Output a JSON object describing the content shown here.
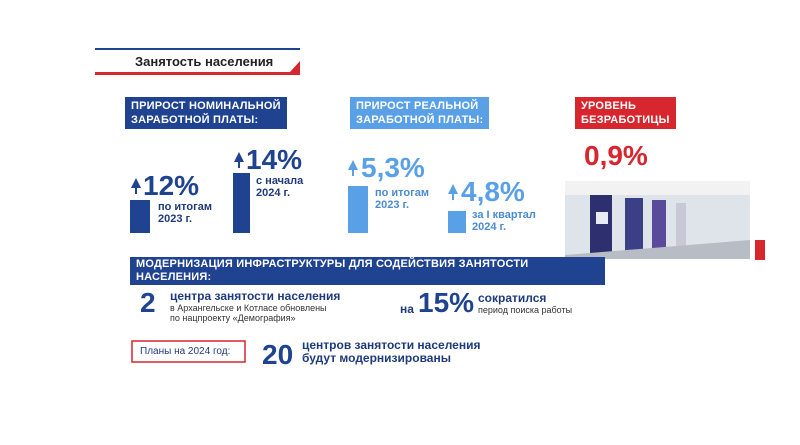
{
  "header": {
    "title": "Занятость населения"
  },
  "nominal": {
    "label": [
      "ПРИРОСТ НОМИНАЛЬНОЙ",
      "ЗАРАБОТНОЙ ПЛАТЫ:"
    ],
    "items": [
      {
        "value": "12%",
        "caption": [
          "по итогам",
          "2023 г."
        ]
      },
      {
        "value": "14%",
        "caption": [
          "с начала",
          "2024 г."
        ]
      }
    ]
  },
  "real": {
    "label": [
      "ПРИРОСТ РЕАЛЬНОЙ",
      "ЗАРАБОТНОЙ ПЛАТЫ:"
    ],
    "items": [
      {
        "value": "5,3%",
        "caption": [
          "по итогам",
          "2023 г."
        ]
      },
      {
        "value": "4,8%",
        "caption": [
          "за I квартал",
          "2024 г."
        ]
      }
    ]
  },
  "unemployment": {
    "label": [
      "УРОВЕНЬ",
      "БЕЗРАБОТИЦЫ"
    ],
    "value": "0,9%"
  },
  "modernization": {
    "title": "МОДЕРНИЗАЦИЯ ИНФРАСТРУКТУРЫ ДЛЯ СОДЕЙСТВИЯ ЗАНЯТОСТИ НАСЕЛЕНИЯ:",
    "centers": {
      "number": "2",
      "headline": "центра занятости населения",
      "details": [
        "в Архангельске и Котласе обновлены",
        "по нацпроекту «Демография»"
      ]
    },
    "search": {
      "prefix": "на",
      "number": "15%",
      "headline": "сократился",
      "detail": "период поиска работы"
    },
    "plans": {
      "label": "Планы на 2024 год:",
      "number": "20",
      "text": [
        "центров занятости населения",
        "будут модернизированы"
      ]
    }
  }
}
